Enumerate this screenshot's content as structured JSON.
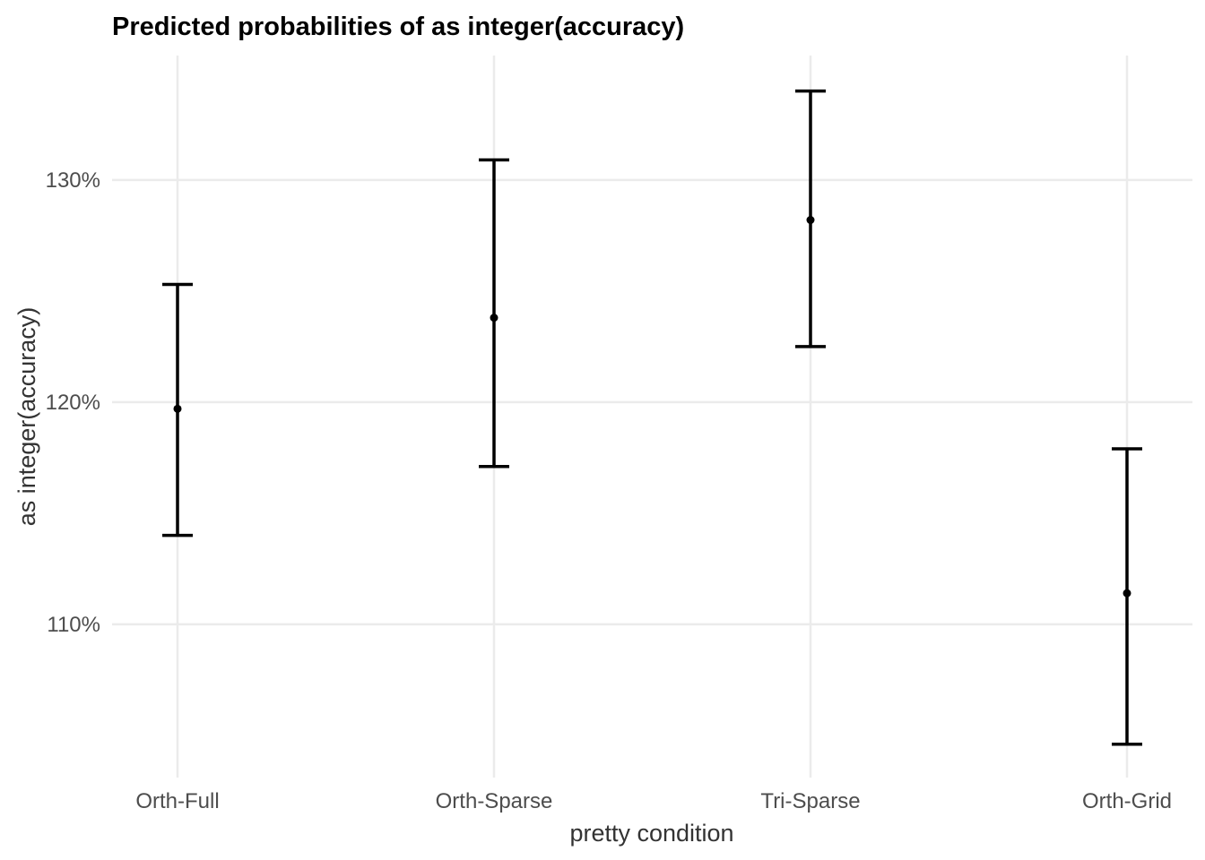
{
  "chart_data": {
    "type": "errorbar",
    "title": "Predicted probabilities of as integer(accuracy)",
    "xlabel": "pretty condition",
    "ylabel": "as integer(accuracy)",
    "categories": [
      "Orth-Full",
      "Orth-Sparse",
      "Tri-Sparse",
      "Orth-Grid"
    ],
    "series": [
      {
        "estimate": [
          119.7,
          123.8,
          128.2,
          111.4
        ],
        "lower": [
          114.0,
          117.1,
          122.5,
          104.6
        ],
        "upper": [
          125.3,
          130.9,
          134.0,
          117.9
        ]
      }
    ],
    "yticks": [
      110,
      120,
      130
    ],
    "ytick_labels": [
      "110%",
      "120%",
      "130%"
    ],
    "ylim": [
      103.1,
      135.6
    ],
    "grid": true,
    "point_color": "#000000",
    "gridline_color": "#ebebeb"
  }
}
